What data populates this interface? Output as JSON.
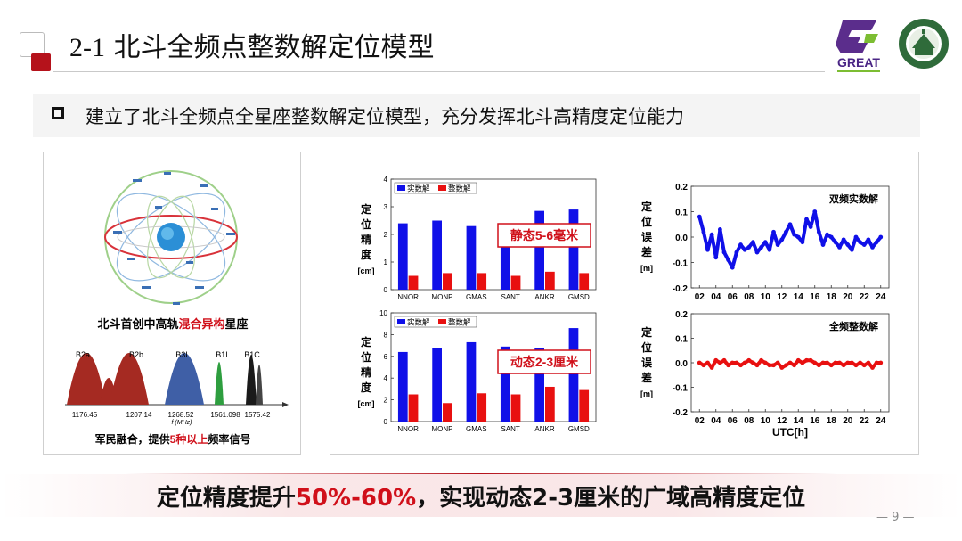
{
  "header": {
    "title_number": "2-1",
    "title_text": "北斗全频点整数解定位模型",
    "logo_text": "GREAT"
  },
  "bullet": {
    "text": "建立了北斗全频点全星座整数解定位模型，充分发挥北斗高精度定位能力"
  },
  "left_panel": {
    "caption_prefix": "北斗首创中高轨",
    "caption_highlight": "混合异构",
    "caption_suffix": "星座",
    "spectrum": {
      "bands": [
        "B2a",
        "B2b",
        "B3I",
        "B1I",
        "B1C"
      ],
      "freq_labels": [
        "1176.45",
        "1207.14",
        "1268.52",
        "1561.098",
        "1575.42"
      ],
      "axis_label": "f (MHz)",
      "colors": [
        "#a52a22",
        "#a52a22",
        "#3f5fa6",
        "#2e9e3f",
        "#1a1a1a"
      ]
    },
    "bottom_prefix": "军民融合，提供",
    "bottom_highlight": "5种以上",
    "bottom_suffix": "频率信号"
  },
  "chart_data": [
    {
      "type": "bar",
      "categories": [
        "NNOR",
        "MONP",
        "GMAS",
        "SANT",
        "ANKR",
        "GMSD"
      ],
      "series": [
        {
          "name": "实数解",
          "values": [
            2.4,
            2.5,
            2.3,
            2.2,
            2.85,
            2.9
          ],
          "color": "#1010e8"
        },
        {
          "name": "整数解",
          "values": [
            0.5,
            0.6,
            0.6,
            0.5,
            0.65,
            0.6
          ],
          "color": "#e81010"
        }
      ],
      "ylim": [
        0,
        4
      ],
      "yticks": [
        "0",
        "1",
        "2",
        "3",
        "4"
      ],
      "ylabel_chars": [
        "定",
        "位",
        "精",
        "度",
        "[cm]"
      ],
      "annotation": "静态5-6毫米"
    },
    {
      "type": "bar",
      "categories": [
        "NNOR",
        "MONP",
        "GMAS",
        "SANT",
        "ANKR",
        "GMSD"
      ],
      "series": [
        {
          "name": "实数解",
          "values": [
            6.4,
            6.8,
            7.3,
            6.9,
            6.8,
            8.6
          ],
          "color": "#1010e8"
        },
        {
          "name": "整数解",
          "values": [
            2.5,
            1.7,
            2.6,
            2.5,
            3.2,
            2.9
          ],
          "color": "#e81010"
        }
      ],
      "ylim": [
        0,
        10
      ],
      "yticks": [
        "0",
        "2",
        "4",
        "6",
        "8",
        "10"
      ],
      "ylabel_chars": [
        "定",
        "位",
        "精",
        "度",
        "[cm]"
      ],
      "annotation": "动态2-3厘米"
    },
    {
      "type": "scatter",
      "title": "双频实数解",
      "color": "#1010e8",
      "x": [
        2,
        2.5,
        3,
        3.5,
        4,
        4.5,
        5,
        5.5,
        6,
        6.5,
        7,
        7.5,
        8,
        8.5,
        9,
        9.5,
        10,
        10.5,
        11,
        11.5,
        12,
        12.5,
        13,
        13.5,
        14,
        14.5,
        15,
        15.5,
        16,
        16.5,
        17,
        17.5,
        18,
        18.5,
        19,
        19.5,
        20,
        20.5,
        21,
        21.5,
        22,
        22.5,
        23,
        23.5,
        24
      ],
      "y": [
        0.08,
        0.02,
        -0.05,
        0.01,
        -0.08,
        0.03,
        -0.06,
        -0.09,
        -0.12,
        -0.06,
        -0.03,
        -0.05,
        -0.04,
        -0.02,
        -0.06,
        -0.04,
        -0.02,
        -0.05,
        0.02,
        -0.03,
        -0.01,
        0.02,
        0.05,
        0.01,
        0.0,
        -0.02,
        0.07,
        0.04,
        0.1,
        0.02,
        -0.03,
        0.01,
        0.0,
        -0.02,
        -0.04,
        -0.01,
        -0.03,
        -0.05,
        0.0,
        -0.02,
        -0.03,
        -0.01,
        -0.04,
        -0.02,
        0.0
      ],
      "ylim": [
        -0.2,
        0.2
      ],
      "yticks": [
        "-0.2",
        "-0.1",
        "0.0",
        "0.1",
        "0.2"
      ],
      "xticks": [
        "02",
        "04",
        "06",
        "08",
        "10",
        "12",
        "14",
        "16",
        "18",
        "20",
        "22",
        "24"
      ],
      "ylabel_chars": [
        "定",
        "位",
        "误",
        "差",
        "[m]"
      ]
    },
    {
      "type": "scatter",
      "title": "全频整数解",
      "color": "#e81010",
      "x": [
        2,
        2.5,
        3,
        3.5,
        4,
        4.5,
        5,
        5.5,
        6,
        6.5,
        7,
        7.5,
        8,
        8.5,
        9,
        9.5,
        10,
        10.5,
        11,
        11.5,
        12,
        12.5,
        13,
        13.5,
        14,
        14.5,
        15,
        15.5,
        16,
        16.5,
        17,
        17.5,
        18,
        18.5,
        19,
        19.5,
        20,
        20.5,
        21,
        21.5,
        22,
        22.5,
        23,
        23.5,
        24
      ],
      "y": [
        0.0,
        -0.01,
        0.0,
        -0.02,
        0.01,
        0.0,
        0.01,
        -0.01,
        0.0,
        0.0,
        -0.01,
        0.0,
        0.01,
        0.0,
        -0.01,
        0.01,
        0.0,
        -0.01,
        -0.01,
        0.0,
        -0.02,
        -0.01,
        0.0,
        -0.01,
        0.01,
        0.0,
        0.01,
        0.01,
        0.0,
        -0.01,
        0.0,
        0.0,
        -0.01,
        0.0,
        0.0,
        -0.01,
        0.0,
        0.0,
        -0.01,
        0.0,
        -0.01,
        0.0,
        -0.02,
        0.0,
        0.0
      ],
      "ylim": [
        -0.2,
        0.2
      ],
      "yticks": [
        "-0.2",
        "-0.1",
        "0.0",
        "0.1",
        "0.2"
      ],
      "xticks": [
        "02",
        "04",
        "06",
        "08",
        "10",
        "12",
        "14",
        "16",
        "18",
        "20",
        "22",
        "24"
      ],
      "xlabel": "UTC[h]",
      "ylabel_chars": [
        "定",
        "位",
        "误",
        "差",
        "[m]"
      ]
    }
  ],
  "footer": {
    "prefix": "定位精度提升",
    "highlight": "50%-60%",
    "suffix": "，实现动态2-3厘米的广域高精度定位",
    "page_number": "— 9 —"
  }
}
